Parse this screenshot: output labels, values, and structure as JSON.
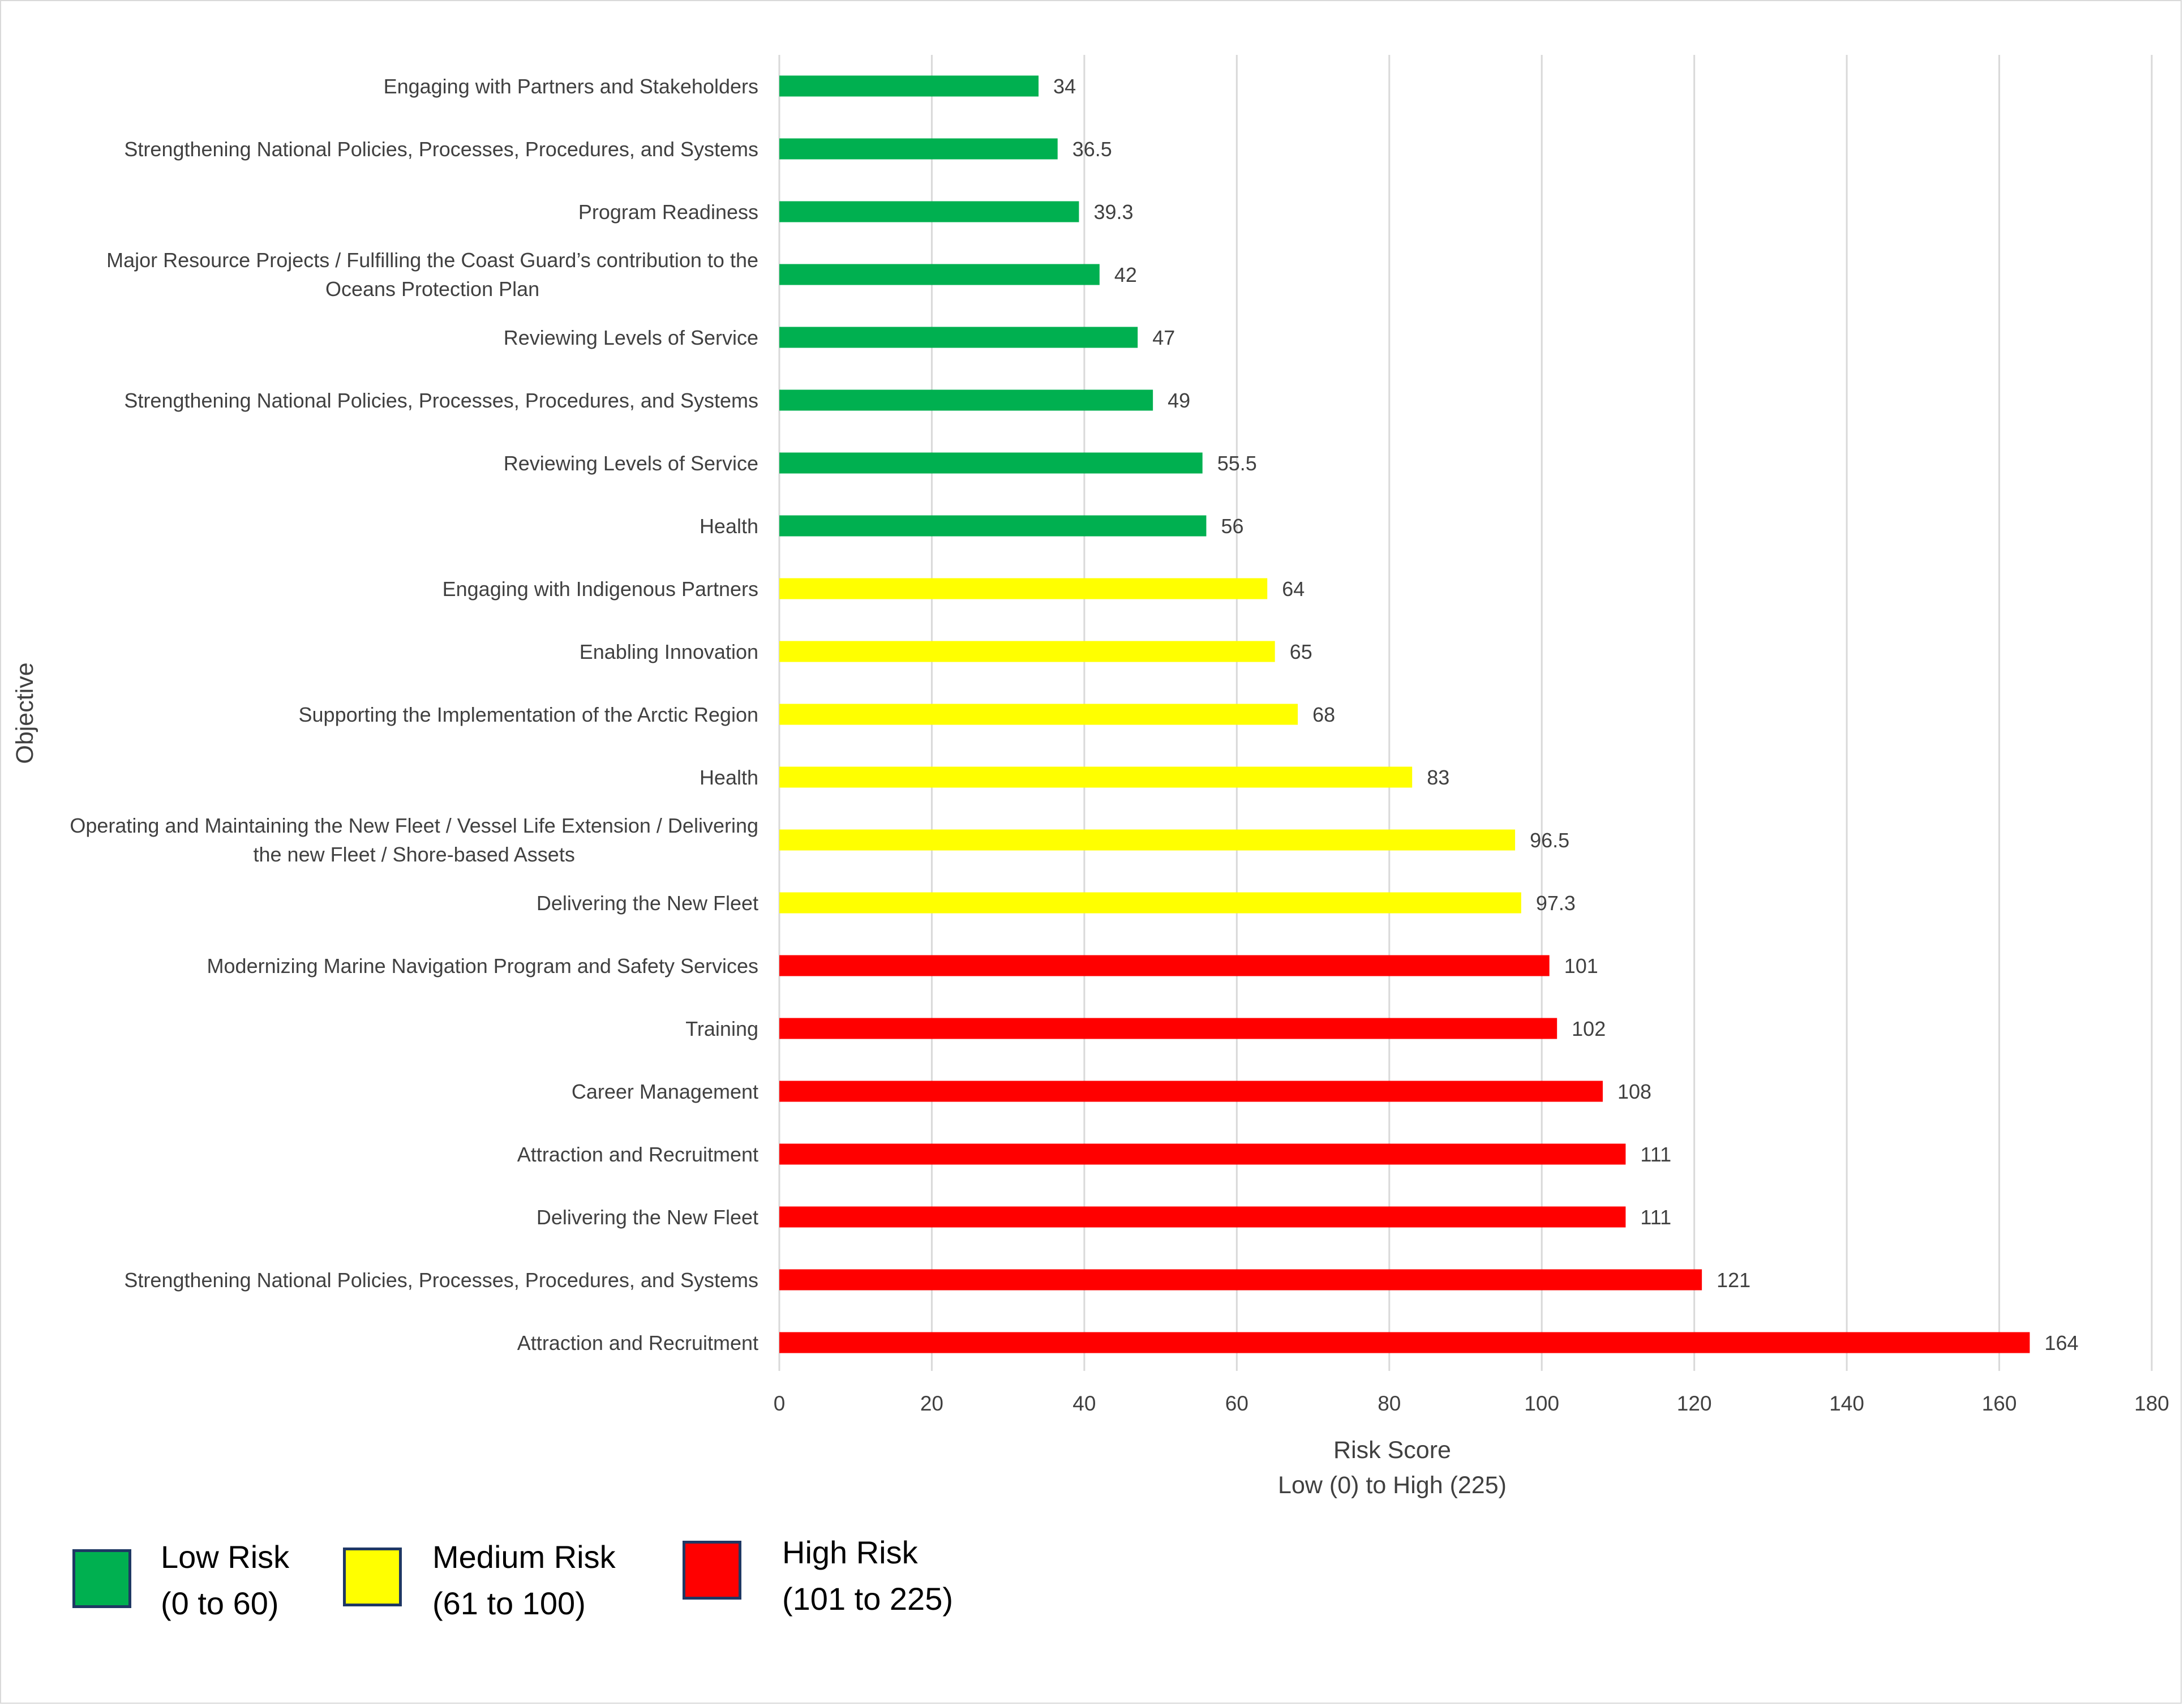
{
  "chart_data": {
    "type": "bar",
    "orientation": "horizontal",
    "title": "",
    "ylabel": "Objective",
    "xlabel": "Risk Score",
    "xlabel_sub": "Low (0) to High (225)",
    "xlim": [
      0,
      180
    ],
    "xticks": [
      0,
      20,
      40,
      60,
      80,
      100,
      120,
      140,
      160,
      180
    ],
    "grid": "vertical",
    "legend_position": "bottom-left",
    "categories": [
      {
        "label": "Engaging with Partners and Stakeholders",
        "value": 34,
        "value_label": "34",
        "risk": "low"
      },
      {
        "label": "Strengthening National Policies, Processes, Procedures, and Systems",
        "value": 36.5,
        "value_label": "36.5",
        "risk": "low"
      },
      {
        "label": "Program Readiness",
        "value": 39.3,
        "value_label": "39.3",
        "risk": "low"
      },
      {
        "label": [
          "Major Resource Projects / Fulfilling the Coast Guard’s contribution to the",
          "Oceans Protection Plan"
        ],
        "value": 42,
        "value_label": "42",
        "risk": "low"
      },
      {
        "label": "Reviewing Levels of Service",
        "value": 47,
        "value_label": "47",
        "risk": "low"
      },
      {
        "label": "Strengthening National Policies, Processes, Procedures, and Systems",
        "value": 49,
        "value_label": "49",
        "risk": "low"
      },
      {
        "label": "Reviewing Levels of Service",
        "value": 55.5,
        "value_label": "55.5",
        "risk": "low"
      },
      {
        "label": "Health",
        "value": 56,
        "value_label": "56",
        "risk": "low"
      },
      {
        "label": "Engaging with Indigenous Partners",
        "value": 64,
        "value_label": "64",
        "risk": "medium"
      },
      {
        "label": "Enabling Innovation",
        "value": 65,
        "value_label": "65",
        "risk": "medium"
      },
      {
        "label": "Supporting the Implementation of the Arctic Region",
        "value": 68,
        "value_label": "68",
        "risk": "medium"
      },
      {
        "label": "Health",
        "value": 83,
        "value_label": "83",
        "risk": "medium"
      },
      {
        "label": [
          "Operating and Maintaining the New Fleet / Vessel Life Extension / Delivering",
          "the new Fleet / Shore-based Assets"
        ],
        "value": 96.5,
        "value_label": "96.5",
        "risk": "medium"
      },
      {
        "label": "Delivering the New Fleet",
        "value": 97.3,
        "value_label": "97.3",
        "risk": "medium"
      },
      {
        "label": "Modernizing Marine Navigation Program and Safety Services",
        "value": 101,
        "value_label": "101",
        "risk": "high"
      },
      {
        "label": "Training",
        "value": 102,
        "value_label": "102",
        "risk": "high"
      },
      {
        "label": "Career Management",
        "value": 108,
        "value_label": "108",
        "risk": "high"
      },
      {
        "label": "Attraction and Recruitment",
        "value": 111,
        "value_label": "111",
        "risk": "high"
      },
      {
        "label": "Delivering the New Fleet",
        "value": 111,
        "value_label": "111",
        "risk": "high"
      },
      {
        "label": "Strengthening National Policies, Processes, Procedures, and Systems",
        "value": 121,
        "value_label": "121",
        "risk": "high"
      },
      {
        "label": "Attraction and Recruitment",
        "value": 164,
        "value_label": "164",
        "risk": "high"
      }
    ],
    "colors": {
      "low": "#00b050",
      "medium": "#ffff00",
      "high": "#ff0000",
      "grid": "#d9d9d9",
      "text": "#404040",
      "swatch_border": "#1f3864"
    }
  },
  "legend": [
    {
      "key": "low",
      "name": "Low Risk",
      "range": "(0 to 60)"
    },
    {
      "key": "medium",
      "name": "Medium Risk",
      "range": "(61 to 100)"
    },
    {
      "key": "high",
      "name": "High Risk",
      "range": "(101 to 225)"
    }
  ]
}
